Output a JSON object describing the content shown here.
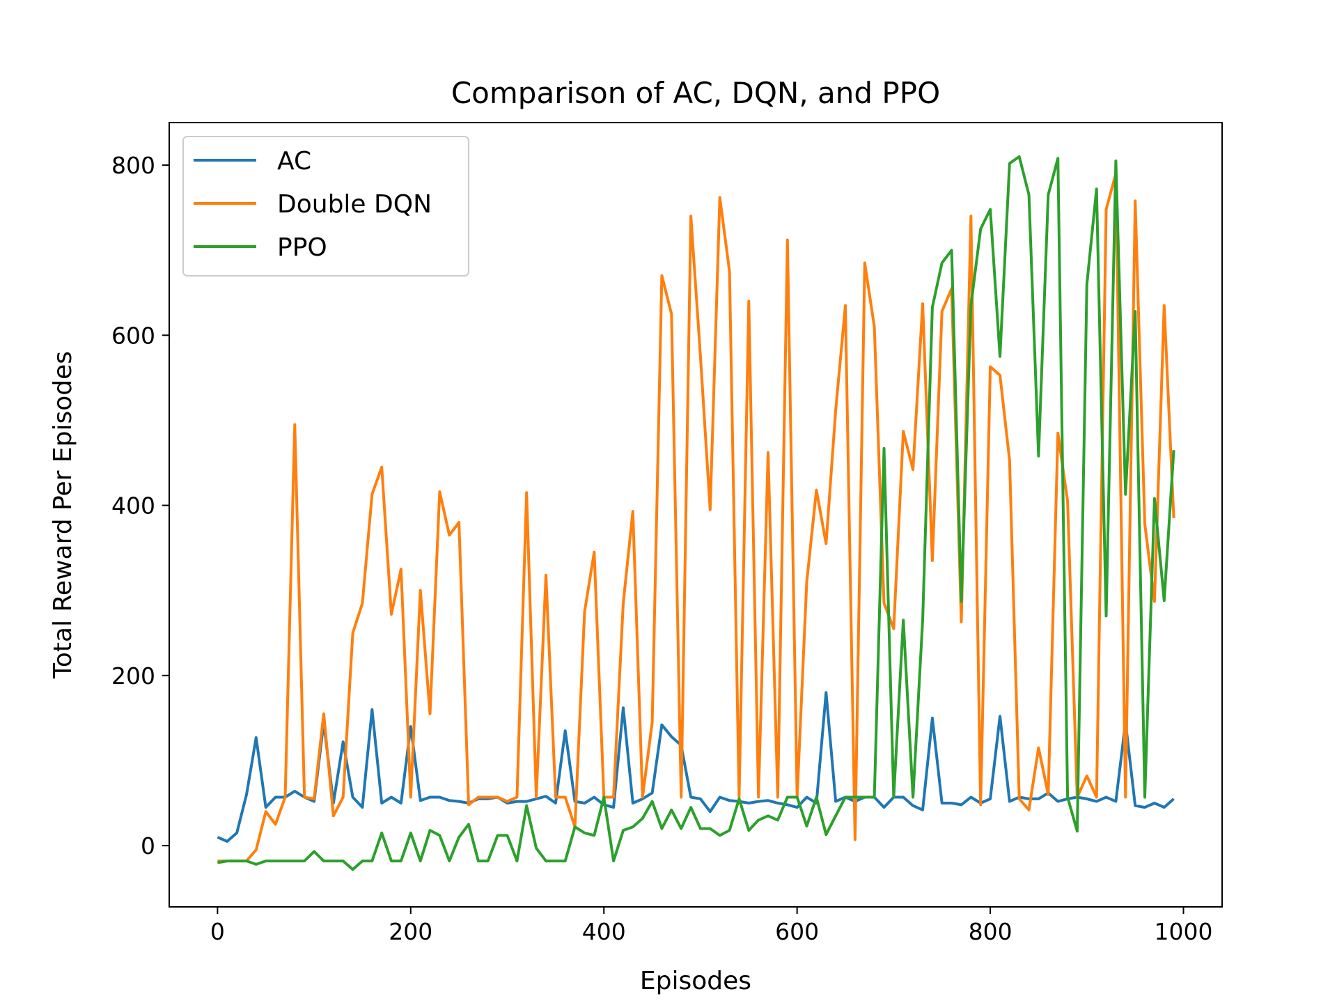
{
  "chart_data": {
    "type": "line",
    "title": "Comparison of AC, DQN, and PPO",
    "xlabel": "Episodes",
    "ylabel": "Total Reward Per Episodes",
    "xlim": [
      -50,
      1040
    ],
    "ylim": [
      -72,
      850
    ],
    "xticks": [
      0,
      200,
      400,
      600,
      800,
      1000
    ],
    "yticks": [
      0,
      200,
      400,
      600,
      800
    ],
    "legend": "upper-left",
    "grid": false,
    "x": [
      0,
      10,
      20,
      30,
      40,
      50,
      60,
      70,
      80,
      90,
      100,
      110,
      120,
      130,
      140,
      150,
      160,
      170,
      180,
      190,
      200,
      210,
      220,
      230,
      240,
      250,
      260,
      270,
      280,
      290,
      300,
      310,
      320,
      330,
      340,
      350,
      360,
      370,
      380,
      390,
      400,
      410,
      420,
      430,
      440,
      450,
      460,
      470,
      480,
      490,
      500,
      510,
      520,
      530,
      540,
      550,
      560,
      570,
      580,
      590,
      600,
      610,
      620,
      630,
      640,
      650,
      660,
      670,
      680,
      690,
      700,
      710,
      720,
      730,
      740,
      750,
      760,
      770,
      780,
      790,
      800,
      810,
      820,
      830,
      840,
      850,
      860,
      870,
      880,
      890,
      900,
      910,
      920,
      930,
      940,
      950,
      960,
      970,
      980,
      990
    ],
    "series": [
      {
        "name": "AC",
        "color": "#1f77b4",
        "values": [
          10,
          5,
          15,
          60,
          127,
          45,
          57,
          57,
          64,
          57,
          52,
          145,
          50,
          122,
          57,
          45,
          160,
          50,
          57,
          50,
          140,
          53,
          57,
          57,
          53,
          52,
          50,
          55,
          55,
          57,
          50,
          52,
          52,
          55,
          58,
          50,
          135,
          52,
          50,
          57,
          48,
          45,
          162,
          50,
          55,
          62,
          142,
          128,
          118,
          57,
          55,
          40,
          57,
          53,
          52,
          50,
          52,
          53,
          50,
          48,
          45,
          57,
          50,
          180,
          52,
          57,
          52,
          57,
          57,
          45,
          57,
          57,
          47,
          42,
          150,
          50,
          50,
          48,
          57,
          50,
          55,
          152,
          52,
          57,
          55,
          55,
          62,
          52,
          55,
          57,
          55,
          52,
          57,
          52,
          145,
          47,
          45,
          50,
          45,
          55
        ]
      },
      {
        "name": "Double DQN",
        "color": "#ff7f0e",
        "values": [
          -18,
          -18,
          -18,
          -18,
          -5,
          40,
          25,
          57,
          495,
          57,
          55,
          155,
          35,
          57,
          250,
          285,
          413,
          445,
          272,
          325,
          57,
          300,
          155,
          416,
          365,
          380,
          48,
          57,
          57,
          57,
          52,
          57,
          415,
          57,
          318,
          57,
          57,
          22,
          275,
          345,
          57,
          57,
          285,
          393,
          57,
          145,
          670,
          625,
          57,
          740,
          575,
          395,
          762,
          675,
          57,
          640,
          57,
          462,
          57,
          712,
          57,
          310,
          418,
          355,
          512,
          635,
          7,
          685,
          610,
          285,
          255,
          487,
          442,
          637,
          335,
          628,
          655,
          263,
          740,
          48,
          563,
          553,
          453,
          55,
          42,
          115,
          60,
          485,
          405,
          57,
          82,
          57,
          748,
          790,
          57,
          758,
          378,
          287,
          635,
          385
        ]
      },
      {
        "name": "PPO",
        "color": "#2ca02c",
        "values": [
          -20,
          -18,
          -18,
          -18,
          -22,
          -18,
          -18,
          -18,
          -18,
          -18,
          -7,
          -18,
          -18,
          -18,
          -28,
          -18,
          -18,
          15,
          -18,
          -18,
          15,
          -18,
          18,
          12,
          -18,
          10,
          25,
          -18,
          -18,
          12,
          12,
          -18,
          47,
          -3,
          -18,
          -18,
          -18,
          22,
          15,
          12,
          57,
          -18,
          18,
          22,
          32,
          52,
          20,
          42,
          20,
          45,
          20,
          20,
          12,
          18,
          55,
          18,
          30,
          35,
          30,
          57,
          57,
          23,
          57,
          13,
          35,
          57,
          57,
          57,
          57,
          467,
          57,
          265,
          57,
          265,
          633,
          685,
          700,
          287,
          635,
          725,
          748,
          575,
          802,
          810,
          765,
          458,
          765,
          808,
          57,
          17,
          660,
          772,
          270,
          805,
          413,
          628,
          57,
          408,
          288,
          465
        ]
      }
    ]
  }
}
